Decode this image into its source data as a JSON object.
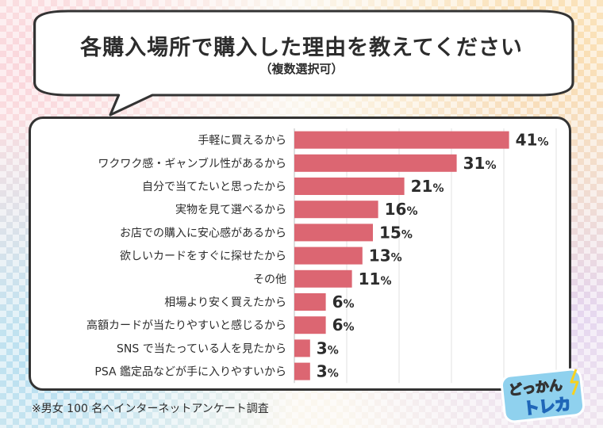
{
  "title": "各購入場所で購入した理由を教えてください",
  "subtitle": "（複数選択可）",
  "footnote": "※男女 100 名へインターネットアンケート調査",
  "logo": {
    "line1": "どっかん",
    "line2": "トレカ"
  },
  "colors": {
    "bar": "#dc6672",
    "text": "#2c2c2c",
    "border": "#333333"
  },
  "chart_data": {
    "type": "bar",
    "orientation": "horizontal",
    "title": "各購入場所で購入した理由を教えてください",
    "xlabel": "",
    "ylabel": "",
    "xlim": [
      0,
      50
    ],
    "grid": true,
    "value_suffix": "%",
    "categories": [
      "手軽に買えるから",
      "ワクワク感・ギャンブル性があるから",
      "自分で当てたいと思ったから",
      "実物を見て選べるから",
      "お店での購入に安心感があるから",
      "欲しいカードをすぐに探せたから",
      "その他",
      "相場より安く買えたから",
      "高額カードが当たりやすいと感じるから",
      "SNS で当たっている人を見たから",
      "PSA 鑑定品などが手に入りやすいから"
    ],
    "values": [
      41,
      31,
      21,
      16,
      15,
      13,
      11,
      6,
      6,
      3,
      3
    ]
  }
}
